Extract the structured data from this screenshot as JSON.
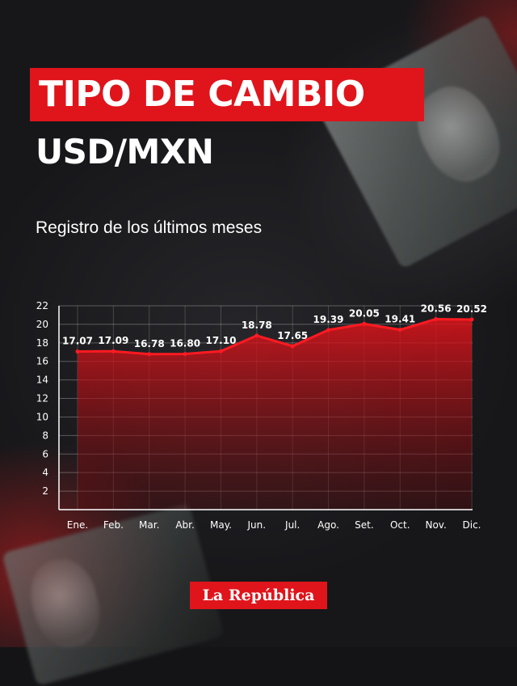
{
  "header": {
    "title": "TIPO DE CAMBIO",
    "subtitle": "USD/MXN",
    "caption": "Registro de los últimos meses"
  },
  "brand": {
    "name": "La República",
    "accent": "#e0141b"
  },
  "icons": [
    "dollar-bill-image"
  ],
  "chart_data": {
    "type": "area",
    "categories": [
      "Ene.",
      "Feb.",
      "Mar.",
      "Abr.",
      "May.",
      "Jun.",
      "Jul.",
      "Ago.",
      "Set.",
      "Oct.",
      "Nov.",
      "Dic."
    ],
    "values": [
      17.07,
      17.09,
      16.78,
      16.8,
      17.1,
      18.78,
      17.65,
      19.39,
      20.05,
      19.41,
      20.56,
      20.52
    ],
    "value_labels": [
      "17.07",
      "17.09",
      "16.78",
      "16.80",
      "17.10",
      "18.78",
      "17.65",
      "19.39",
      "20.05",
      "19.41",
      "20.56",
      "20.52"
    ],
    "yticks": [
      2,
      4,
      6,
      8,
      10,
      12,
      14,
      16,
      18,
      20,
      22
    ],
    "ylim": [
      0,
      22
    ],
    "grid": true,
    "color": "#e0141b"
  }
}
